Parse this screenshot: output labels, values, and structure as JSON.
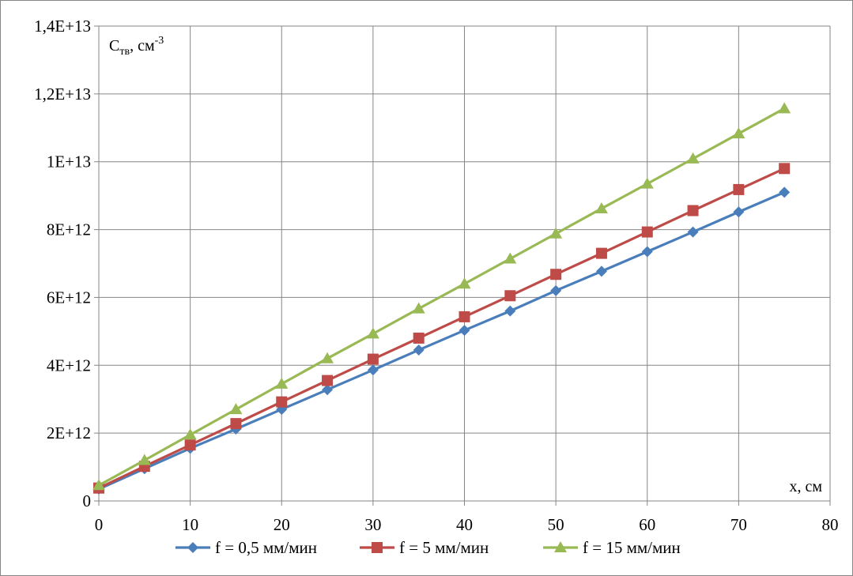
{
  "chart_data": {
    "type": "line",
    "x_ticks": [
      0,
      10,
      20,
      30,
      40,
      50,
      60,
      70,
      80
    ],
    "xlim": [
      0,
      80
    ],
    "ylim": [
      0,
      14000000000000
    ],
    "y_ticks": [
      {
        "value": 0,
        "label": "0"
      },
      {
        "value": 2000000000000,
        "label": "2E+12"
      },
      {
        "value": 4000000000000,
        "label": "4E+12"
      },
      {
        "value": 6000000000000,
        "label": "6E+12"
      },
      {
        "value": 8000000000000,
        "label": "8E+12"
      },
      {
        "value": 10000000000000,
        "label": "1E+13"
      },
      {
        "value": 12000000000000,
        "label": "1,2E+13"
      },
      {
        "value": 14000000000000,
        "label": "1,4E+13"
      }
    ],
    "ylabel": {
      "main": "C",
      "sub": "тв",
      "unit": ", см",
      "sup": "-3"
    },
    "xlabel": "x, см",
    "grid": true,
    "legend_position": "bottom",
    "x": [
      0,
      5,
      10,
      15,
      20,
      25,
      30,
      35,
      40,
      45,
      50,
      55,
      60,
      65,
      70,
      75
    ],
    "series": [
      {
        "name": "f = 0,5 мм/мин",
        "color": "#4A7EBB",
        "marker": "diamond",
        "values": [
          350000000000.0,
          950000000000.0,
          1550000000000.0,
          2120000000000.0,
          2700000000000.0,
          3280000000000.0,
          3860000000000.0,
          4450000000000.0,
          5030000000000.0,
          5600000000000.0,
          6200000000000.0,
          6770000000000.0,
          7350000000000.0,
          7930000000000.0,
          8520000000000.0,
          9100000000000.0
        ]
      },
      {
        "name": "f = 5 мм/мин",
        "color": "#BE4B48",
        "marker": "square",
        "values": [
          380000000000.0,
          1020000000000.0,
          1650000000000.0,
          2280000000000.0,
          2920000000000.0,
          3550000000000.0,
          4180000000000.0,
          4800000000000.0,
          5430000000000.0,
          6050000000000.0,
          6680000000000.0,
          7300000000000.0,
          7930000000000.0,
          8560000000000.0,
          9180000000000.0,
          9800000000000.0
        ]
      },
      {
        "name": "f = 15 мм/мин",
        "color": "#98B954",
        "marker": "triangle",
        "values": [
          460000000000.0,
          1200000000000.0,
          1950000000000.0,
          2700000000000.0,
          3450000000000.0,
          4200000000000.0,
          4930000000000.0,
          5670000000000.0,
          6400000000000.0,
          7140000000000.0,
          7880000000000.0,
          8620000000000.0,
          9350000000000.0,
          10090000000000.0,
          10830000000000.0,
          11570000000000.0
        ]
      }
    ]
  }
}
